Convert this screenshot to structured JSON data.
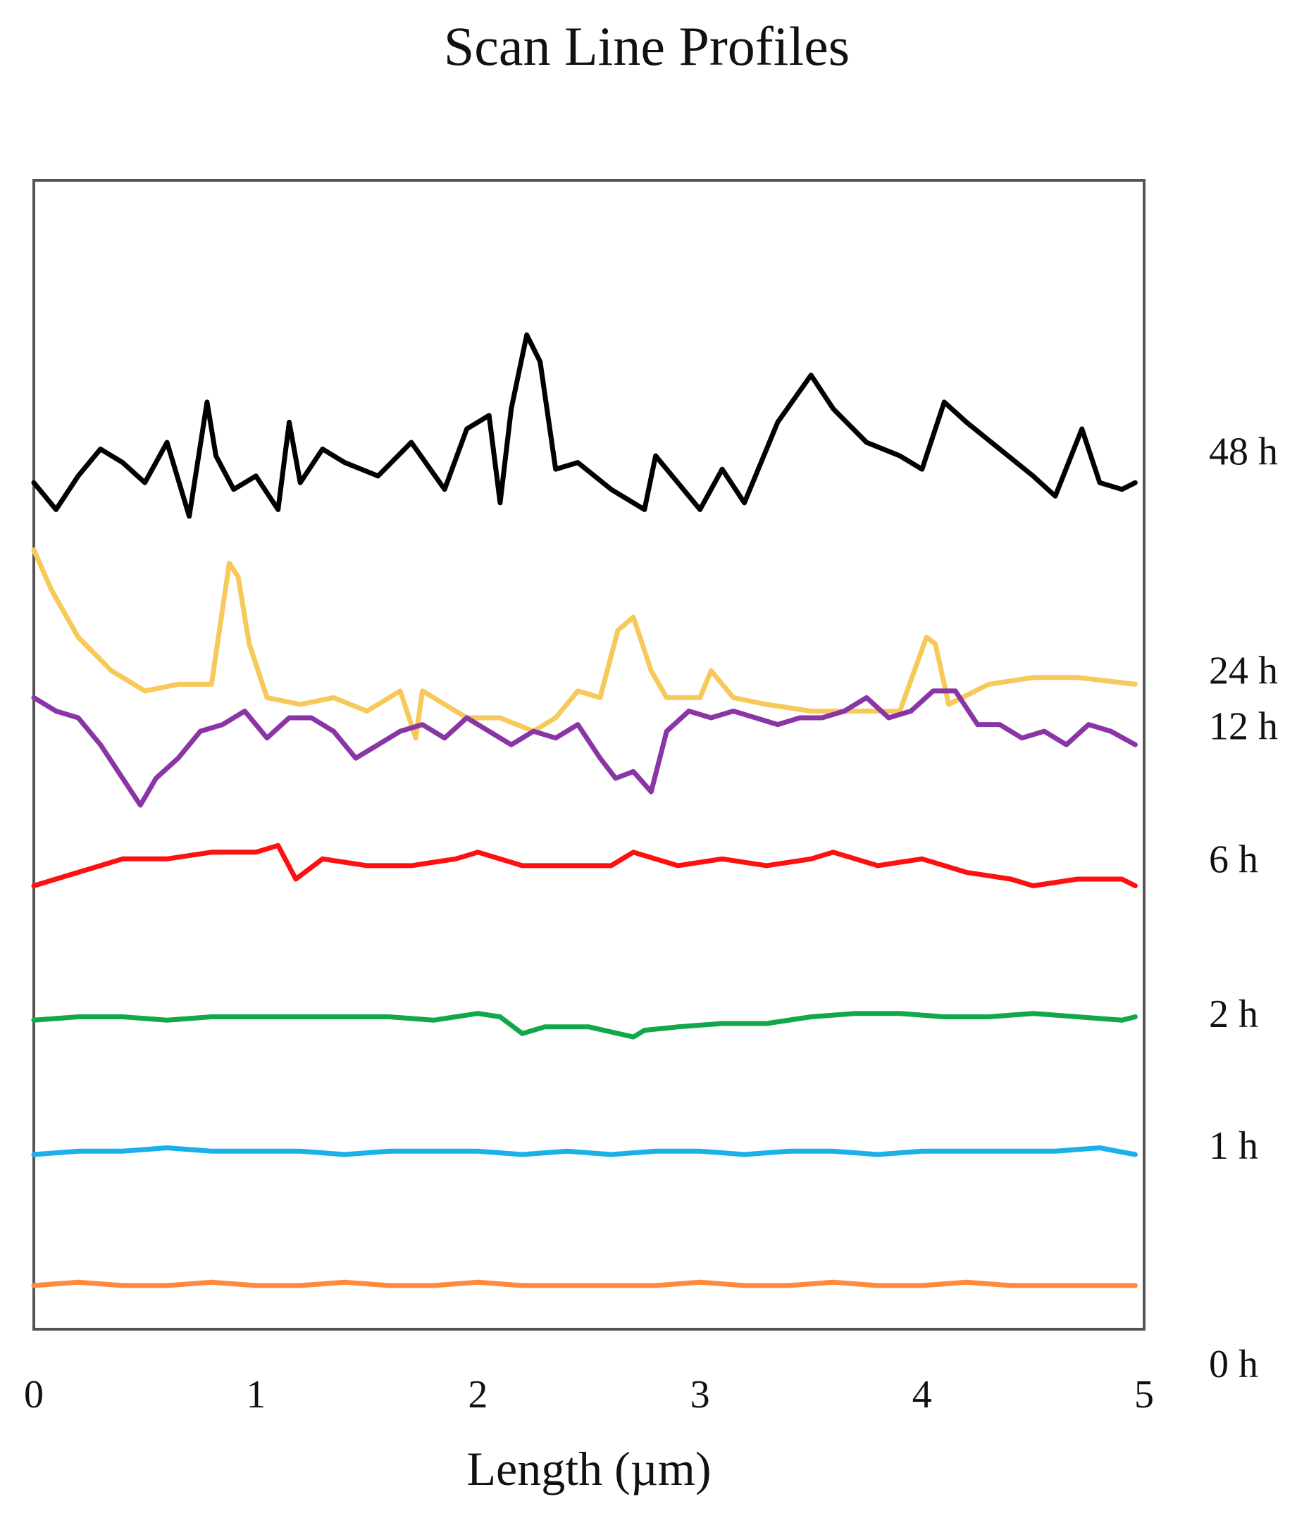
{
  "chart_data": {
    "type": "line",
    "title": "Scan Line Profiles",
    "xlabel": "Length (µm)",
    "ylabel": "",
    "xlim": [
      0,
      5
    ],
    "x_ticks": [
      "0",
      "1",
      "2",
      "3",
      "4",
      "5"
    ],
    "grid": false,
    "y_ticks_shown": false,
    "legend": "none",
    "series_labels_position": "right, outside plot",
    "series": [
      {
        "name": "48 h",
        "color": "#000000",
        "x": [
          0,
          0.1,
          0.2,
          0.3,
          0.4,
          0.5,
          0.6,
          0.7,
          0.78,
          0.82,
          0.9,
          1.0,
          1.1,
          1.15,
          1.2,
          1.3,
          1.4,
          1.55,
          1.7,
          1.85,
          1.95,
          2.05,
          2.1,
          2.15,
          2.22,
          2.28,
          2.35,
          2.45,
          2.6,
          2.75,
          2.8,
          2.9,
          3.0,
          3.1,
          3.2,
          3.35,
          3.5,
          3.6,
          3.75,
          3.9,
          4.0,
          4.1,
          4.2,
          4.35,
          4.5,
          4.6,
          4.72,
          4.8,
          4.9,
          4.96
        ],
        "y": [
          8.0,
          7.6,
          8.1,
          8.5,
          8.3,
          8.0,
          8.6,
          7.5,
          9.2,
          8.4,
          7.9,
          8.1,
          7.6,
          8.9,
          8.0,
          8.5,
          8.3,
          8.1,
          8.6,
          7.9,
          8.8,
          9.0,
          7.7,
          9.1,
          10.2,
          9.8,
          8.2,
          8.3,
          7.9,
          7.6,
          8.4,
          8.0,
          7.6,
          8.2,
          7.7,
          8.9,
          9.6,
          9.1,
          8.6,
          8.4,
          8.2,
          9.2,
          8.9,
          8.5,
          8.1,
          7.8,
          8.8,
          8.0,
          7.9,
          8.0
        ]
      },
      {
        "name": "24 h",
        "color": "#f7c85a",
        "x": [
          0,
          0.08,
          0.2,
          0.35,
          0.5,
          0.65,
          0.8,
          0.88,
          0.92,
          0.97,
          1.05,
          1.2,
          1.35,
          1.5,
          1.65,
          1.72,
          1.75,
          1.8,
          1.95,
          2.1,
          2.25,
          2.35,
          2.45,
          2.55,
          2.63,
          2.7,
          2.78,
          2.85,
          3.0,
          3.05,
          3.15,
          3.3,
          3.5,
          3.7,
          3.9,
          4.02,
          4.06,
          4.12,
          4.3,
          4.5,
          4.7,
          4.96
        ],
        "y": [
          7.0,
          6.4,
          5.7,
          5.2,
          4.9,
          5.0,
          5.0,
          6.8,
          6.6,
          5.6,
          4.8,
          4.7,
          4.8,
          4.6,
          4.9,
          4.2,
          4.9,
          4.8,
          4.5,
          4.5,
          4.3,
          4.5,
          4.9,
          4.8,
          5.8,
          6.0,
          5.2,
          4.8,
          4.8,
          5.2,
          4.8,
          4.7,
          4.6,
          4.6,
          4.6,
          5.7,
          5.6,
          4.7,
          5.0,
          5.1,
          5.1,
          5.0
        ]
      },
      {
        "name": "12 h",
        "color": "#8a35a5",
        "x": [
          0,
          0.1,
          0.2,
          0.3,
          0.4,
          0.48,
          0.55,
          0.65,
          0.75,
          0.85,
          0.95,
          1.05,
          1.15,
          1.25,
          1.35,
          1.45,
          1.55,
          1.65,
          1.75,
          1.85,
          1.95,
          2.05,
          2.15,
          2.25,
          2.35,
          2.45,
          2.55,
          2.62,
          2.7,
          2.78,
          2.85,
          2.95,
          3.05,
          3.15,
          3.25,
          3.35,
          3.45,
          3.55,
          3.65,
          3.75,
          3.85,
          3.95,
          4.05,
          4.15,
          4.25,
          4.35,
          4.45,
          4.55,
          4.65,
          4.75,
          4.85,
          4.96
        ],
        "y": [
          4.8,
          4.6,
          4.5,
          4.1,
          3.6,
          3.2,
          3.6,
          3.9,
          4.3,
          4.4,
          4.6,
          4.2,
          4.5,
          4.5,
          4.3,
          3.9,
          4.1,
          4.3,
          4.4,
          4.2,
          4.5,
          4.3,
          4.1,
          4.3,
          4.2,
          4.4,
          3.9,
          3.6,
          3.7,
          3.4,
          4.3,
          4.6,
          4.5,
          4.6,
          4.5,
          4.4,
          4.5,
          4.5,
          4.6,
          4.8,
          4.5,
          4.6,
          4.9,
          4.9,
          4.4,
          4.4,
          4.2,
          4.3,
          4.1,
          4.4,
          4.3,
          4.1
        ]
      },
      {
        "name": "6 h",
        "color": "#ff1010",
        "x": [
          0,
          0.2,
          0.4,
          0.6,
          0.8,
          1.0,
          1.1,
          1.18,
          1.3,
          1.5,
          1.7,
          1.9,
          2.0,
          2.2,
          2.4,
          2.6,
          2.7,
          2.9,
          3.1,
          3.3,
          3.5,
          3.6,
          3.8,
          4.0,
          4.2,
          4.4,
          4.5,
          4.7,
          4.9,
          4.96
        ],
        "y": [
          2.0,
          2.2,
          2.4,
          2.4,
          2.5,
          2.5,
          2.6,
          2.1,
          2.4,
          2.3,
          2.3,
          2.4,
          2.5,
          2.3,
          2.3,
          2.3,
          2.5,
          2.3,
          2.4,
          2.3,
          2.4,
          2.5,
          2.3,
          2.4,
          2.2,
          2.1,
          2.0,
          2.1,
          2.1,
          2.0
        ]
      },
      {
        "name": "2 h",
        "color": "#10a84a",
        "x": [
          0,
          0.2,
          0.4,
          0.6,
          0.8,
          1.0,
          1.2,
          1.4,
          1.6,
          1.8,
          2.0,
          2.1,
          2.2,
          2.3,
          2.5,
          2.7,
          2.75,
          2.9,
          3.1,
          3.3,
          3.5,
          3.7,
          3.9,
          4.1,
          4.3,
          4.5,
          4.7,
          4.9,
          4.96
        ],
        "y": [
          0.0,
          0.05,
          0.05,
          0.0,
          0.05,
          0.05,
          0.05,
          0.05,
          0.05,
          0.0,
          0.1,
          0.05,
          -0.2,
          -0.1,
          -0.1,
          -0.25,
          -0.15,
          -0.1,
          -0.05,
          -0.05,
          0.05,
          0.1,
          0.1,
          0.05,
          0.05,
          0.1,
          0.05,
          0.0,
          0.05
        ]
      },
      {
        "name": "1 h",
        "color": "#1ab0e8",
        "x": [
          0,
          0.2,
          0.4,
          0.6,
          0.8,
          1.0,
          1.2,
          1.4,
          1.6,
          1.8,
          2.0,
          2.2,
          2.4,
          2.6,
          2.8,
          3.0,
          3.2,
          3.4,
          3.6,
          3.8,
          4.0,
          4.2,
          4.4,
          4.6,
          4.8,
          4.96
        ],
        "y": [
          -2.0,
          -1.95,
          -1.95,
          -1.9,
          -1.95,
          -1.95,
          -1.95,
          -2.0,
          -1.95,
          -1.95,
          -1.95,
          -2.0,
          -1.95,
          -2.0,
          -1.95,
          -1.95,
          -2.0,
          -1.95,
          -1.95,
          -2.0,
          -1.95,
          -1.95,
          -1.95,
          -1.95,
          -1.9,
          -2.0
        ]
      },
      {
        "name": "0 h",
        "color": "#ff8a3d",
        "x": [
          0,
          0.2,
          0.4,
          0.6,
          0.8,
          1.0,
          1.2,
          1.4,
          1.6,
          1.8,
          2.0,
          2.2,
          2.4,
          2.6,
          2.8,
          3.0,
          3.2,
          3.4,
          3.6,
          3.8,
          4.0,
          4.2,
          4.4,
          4.6,
          4.8,
          4.96
        ],
        "y": [
          -3.95,
          -3.9,
          -3.95,
          -3.95,
          -3.9,
          -3.95,
          -3.95,
          -3.9,
          -3.95,
          -3.95,
          -3.9,
          -3.95,
          -3.95,
          -3.95,
          -3.95,
          -3.9,
          -3.95,
          -3.95,
          -3.9,
          -3.95,
          -3.95,
          -3.9,
          -3.95,
          -3.95,
          -3.95,
          -3.95
        ]
      }
    ]
  }
}
